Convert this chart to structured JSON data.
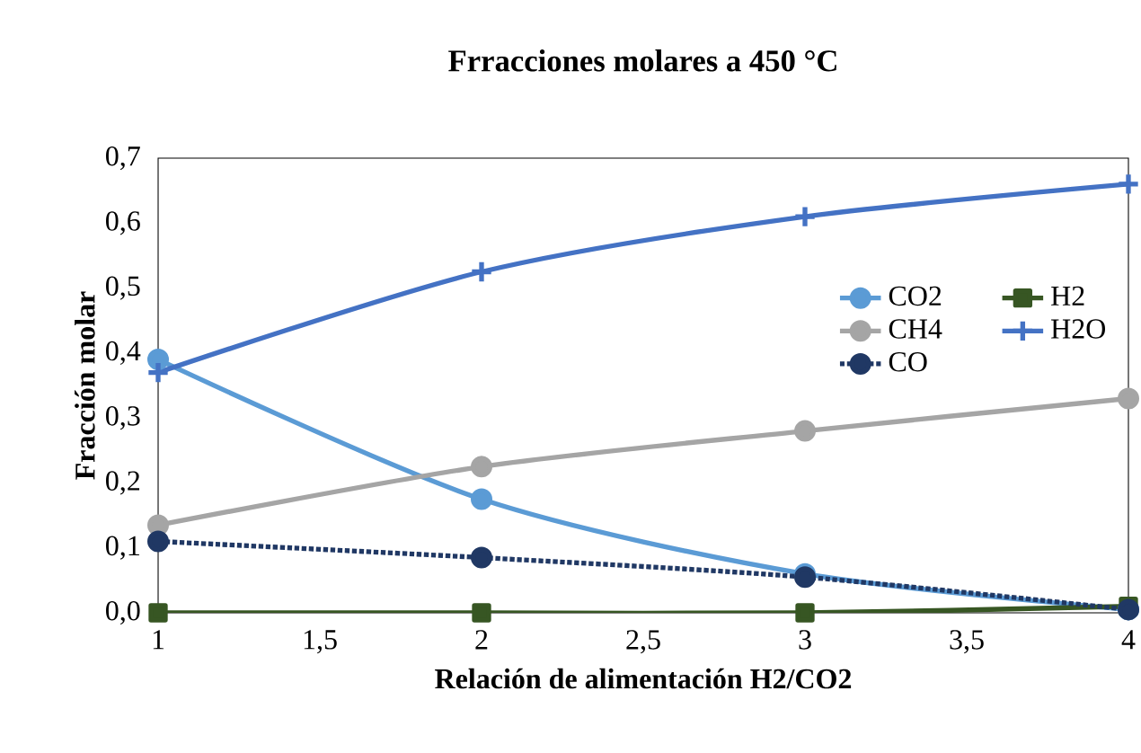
{
  "chart_data": {
    "type": "line",
    "title": "Frracciones molares a 450 °C",
    "xlabel": "Relación de alimentación H2/CO2",
    "ylabel": "Fracción molar",
    "x": [
      1,
      2,
      3,
      4
    ],
    "xlim": [
      1,
      4
    ],
    "xticks": [
      1,
      {
        "value": 1.5,
        "label": "1,5"
      },
      2,
      {
        "value": 2.5,
        "label": "2,5"
      },
      3,
      {
        "value": 3.5,
        "label": "3,5"
      },
      4
    ],
    "ylim": [
      0,
      0.7
    ],
    "yticks": [
      {
        "value": 0,
        "label": "0,0"
      },
      {
        "value": 0.1,
        "label": "0,1"
      },
      {
        "value": 0.2,
        "label": "0,2"
      },
      {
        "value": 0.3,
        "label": "0,3"
      },
      {
        "value": 0.4,
        "label": "0,4"
      },
      {
        "value": 0.5,
        "label": "0,5"
      },
      {
        "value": 0.6,
        "label": "0,6"
      },
      {
        "value": 0.7,
        "label": "0,7"
      }
    ],
    "grid": false,
    "legend": "right",
    "series": [
      {
        "name": "CO2",
        "color": "#5b9bd5",
        "marker": "circle",
        "line_style": "solid",
        "values": [
          0.39,
          0.175,
          0.06,
          0.005
        ]
      },
      {
        "name": "H2",
        "color": "#375623",
        "marker": "square",
        "line_style": "solid",
        "values": [
          0.0,
          0.0,
          0.0,
          0.01
        ]
      },
      {
        "name": "CH4",
        "color": "#a5a5a5",
        "marker": "circle",
        "line_style": "solid",
        "values": [
          0.135,
          0.225,
          0.28,
          0.33
        ]
      },
      {
        "name": "H2O",
        "color": "#4472c4",
        "marker": "cross",
        "line_style": "solid",
        "values": [
          0.37,
          0.525,
          0.61,
          0.66
        ]
      },
      {
        "name": "CO",
        "color": "#203864",
        "marker": "circle",
        "line_style": "dotted",
        "values": [
          0.11,
          0.085,
          0.055,
          0.005
        ]
      }
    ]
  }
}
